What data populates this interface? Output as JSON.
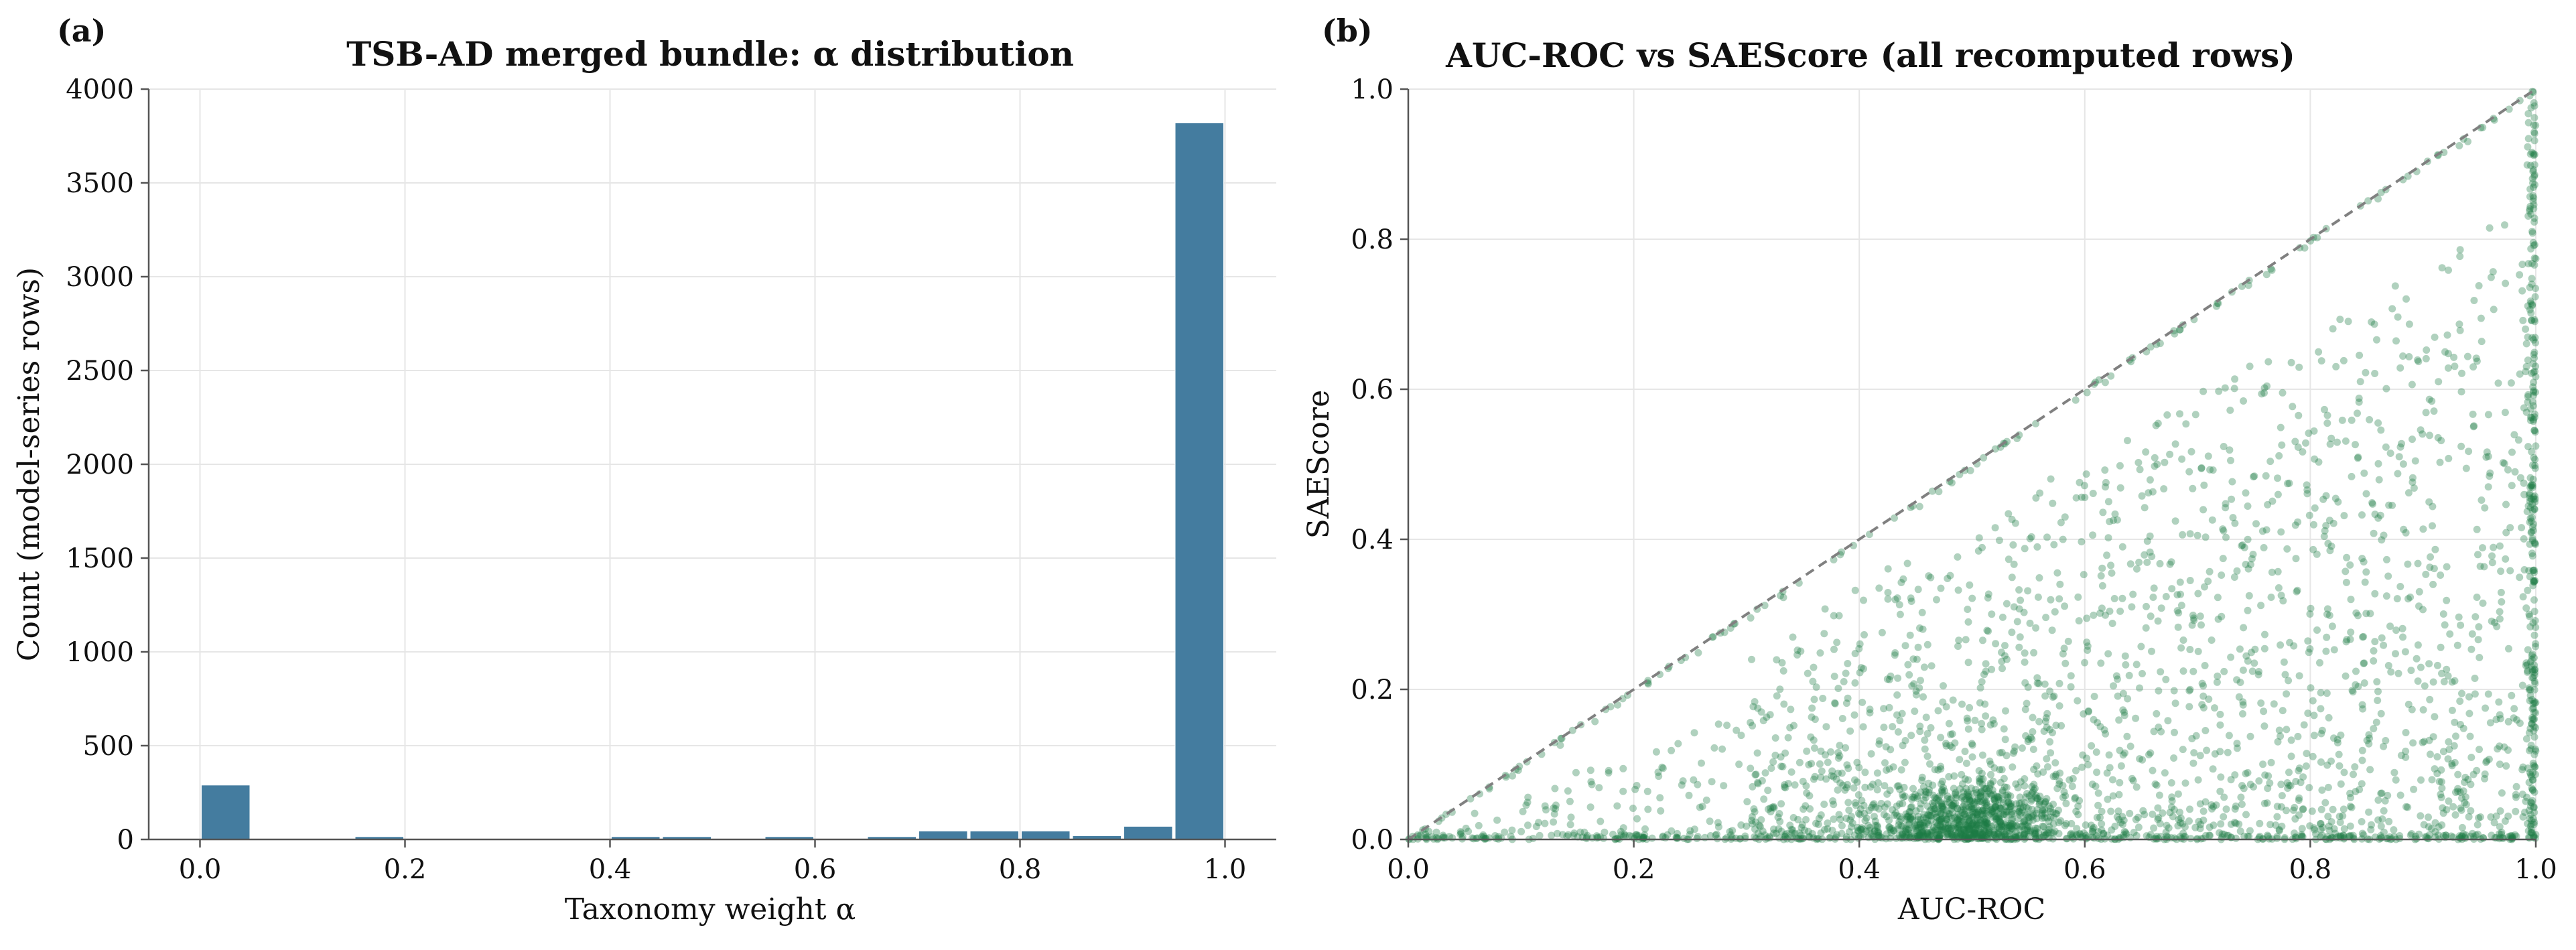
{
  "chart_data": [
    {
      "type": "bar",
      "panel_label": "(a)",
      "title": "TSB-AD merged bundle: α distribution",
      "xlabel": "Taxonomy weight α",
      "ylabel": "Count (model-series rows)",
      "xlim": [
        -0.05,
        1.05
      ],
      "ylim": [
        0,
        4000
      ],
      "xticks": [
        "0.0",
        "0.2",
        "0.4",
        "0.6",
        "0.8",
        "1.0"
      ],
      "yticks": [
        "0",
        "500",
        "1000",
        "1500",
        "2000",
        "2500",
        "3000",
        "3500",
        "4000"
      ],
      "grid": true,
      "color": "#447c9f",
      "bin_width": 0.05,
      "bins": [
        {
          "x": 0.0,
          "value": 290
        },
        {
          "x": 0.15,
          "value": 15
        },
        {
          "x": 0.2,
          "value": 5
        },
        {
          "x": 0.4,
          "value": 15
        },
        {
          "x": 0.45,
          "value": 15
        },
        {
          "x": 0.55,
          "value": 15
        },
        {
          "x": 0.65,
          "value": 15
        },
        {
          "x": 0.7,
          "value": 45
        },
        {
          "x": 0.75,
          "value": 45
        },
        {
          "x": 0.8,
          "value": 45
        },
        {
          "x": 0.85,
          "value": 20
        },
        {
          "x": 0.9,
          "value": 70
        },
        {
          "x": 0.95,
          "value": 3820
        }
      ]
    },
    {
      "type": "scatter",
      "panel_label": "(b)",
      "title": "AUC-ROC vs SAEScore (all recomputed rows)",
      "xlabel": "AUC-ROC",
      "ylabel": "SAEScore",
      "xlim": [
        0,
        1
      ],
      "ylim": [
        0,
        1
      ],
      "xticks": [
        "0.0",
        "0.2",
        "0.4",
        "0.6",
        "0.8",
        "1.0"
      ],
      "yticks": [
        "0.0",
        "0.2",
        "0.4",
        "0.6",
        "0.8",
        "1.0"
      ],
      "grid": true,
      "color": "#1d7a45",
      "reference_line": {
        "from": [
          0,
          0
        ],
        "to": [
          1,
          1
        ],
        "style": "dashed",
        "color": "#808080"
      },
      "clusters": [
        {
          "name": "dense core",
          "center": [
            0.5,
            0.03
          ],
          "spread": [
            0.04,
            0.04
          ],
          "count": 700
        },
        {
          "name": "main cloud",
          "x_range": [
            0.3,
            1.0
          ],
          "y_max_ratio": 0.85,
          "count": 1800
        },
        {
          "name": "diagonal band",
          "along": "y=x",
          "x_range": [
            0.0,
            1.0
          ],
          "count": 140
        },
        {
          "name": "x=1 column",
          "x": 1.0,
          "y_range": [
            0.0,
            1.0
          ],
          "count": 260
        },
        {
          "name": "y=0 row",
          "y": 0.0,
          "x_range": [
            0.0,
            1.0
          ],
          "count": 220
        },
        {
          "name": "sparse low-x",
          "x_range": [
            0.0,
            0.4
          ],
          "y_max_ratio": 0.6,
          "count": 200
        }
      ]
    }
  ]
}
